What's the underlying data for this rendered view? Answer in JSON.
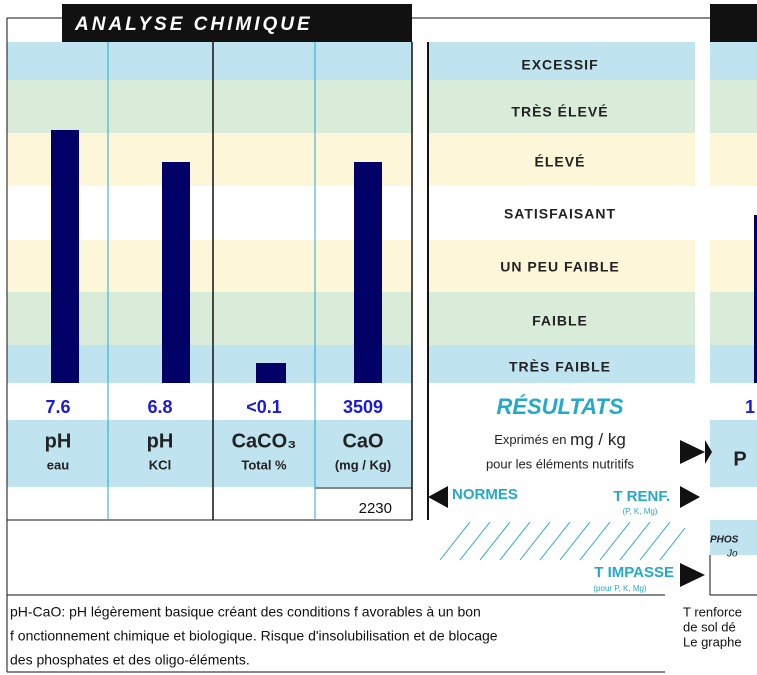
{
  "header": {
    "title": "ANALYSE CHIMIQUE"
  },
  "levels": [
    "EXCESSIF",
    "TRÈS ÉLEVÉ",
    "ÉLEVÉ",
    "SATISFAISANT",
    "UN PEU FAIBLE",
    "FAIBLE",
    "TRÈS FAIBLE"
  ],
  "columns": [
    {
      "value": "7.6",
      "name": "pH",
      "unit": "eau"
    },
    {
      "value": "6.8",
      "name": "pH",
      "unit": "KCl"
    },
    {
      "value": "<0.1",
      "name": "CaCO₃",
      "unit": "Total %"
    },
    {
      "value": "3509",
      "name": "CaO",
      "unit": "(mg / Kg)",
      "norm": "2230"
    }
  ],
  "results": {
    "title": "RÉSULTATS",
    "note_1": "Exprimés en",
    "unit": "mg / kg",
    "note_2": "pour les éléments nutritifs"
  },
  "norms": {
    "label": "NORMES",
    "t_renf": "T RENF.",
    "t_renf_sub": "(P, K, Mg)",
    "t_impasse": "T IMPASSE",
    "t_impasse_sub": "(pour P, K, Mg)"
  },
  "right_panel": {
    "value": "1",
    "name": "P",
    "phos": "PHOS",
    "jo": "Jo"
  },
  "comment": [
    "pH-CaO: pH légèrement basique créant des conditions f avorables à un bon",
    "f onctionnement chimique et biologique. Risque d'insolubilisation et de blocage",
    "des phosphates et des oligo-éléments."
  ],
  "side_text": [
    "T renforce",
    "de sol dé",
    "Le graphe"
  ]
}
